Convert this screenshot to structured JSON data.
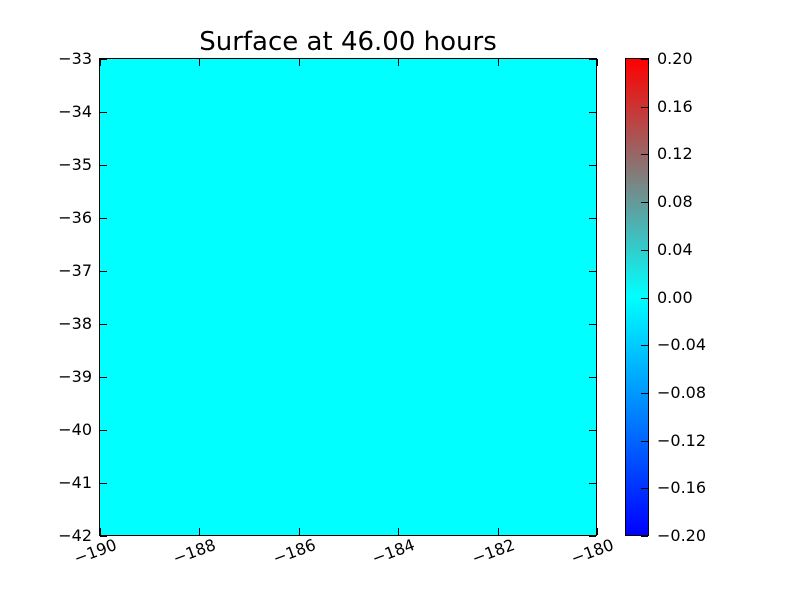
{
  "figure": {
    "background_color": "#ffffff",
    "frame_color": "#000000"
  },
  "chart_data": {
    "type": "heatmap",
    "title": "Surface at 46.00 hours",
    "xlabel": "",
    "ylabel": "",
    "x_axis": {
      "min": -190,
      "max": -180,
      "tick_values": [
        -190,
        -188,
        -186,
        -184,
        -182,
        -180
      ],
      "tick_labels": [
        "−190",
        "−188",
        "−186",
        "−184",
        "−182",
        "−180"
      ],
      "tick_rotation_deg": 20,
      "tick_direction": "in"
    },
    "y_axis": {
      "min": -42,
      "max": -33,
      "tick_values": [
        -33,
        -34,
        -35,
        -36,
        -37,
        -38,
        -39,
        -40,
        -41,
        -42
      ],
      "tick_labels": [
        "−33",
        "−34",
        "−35",
        "−36",
        "−37",
        "−38",
        "−39",
        "−40",
        "−41",
        "−42"
      ],
      "tick_direction": "in"
    },
    "field": {
      "description": "uniform surface elevation field at t = 46.00 hours",
      "uniform_value": 0.0,
      "fill_color": "#00ffff"
    },
    "colorbar": {
      "orientation": "vertical",
      "vmin": -0.2,
      "vmax": 0.2,
      "tick_values": [
        0.2,
        0.16,
        0.12,
        0.08,
        0.04,
        0.0,
        -0.04,
        -0.08,
        -0.12,
        -0.16,
        -0.2
      ],
      "tick_labels": [
        "0.20",
        "0.16",
        "0.12",
        "0.08",
        "0.04",
        "0.00",
        "−0.04",
        "−0.08",
        "−0.12",
        "−0.16",
        "−0.20"
      ],
      "gradient": {
        "top_color": "#ff0000",
        "mid_color": "#00ffff",
        "bottom_color": "#0000ff"
      }
    },
    "grid": false,
    "legend": null
  }
}
